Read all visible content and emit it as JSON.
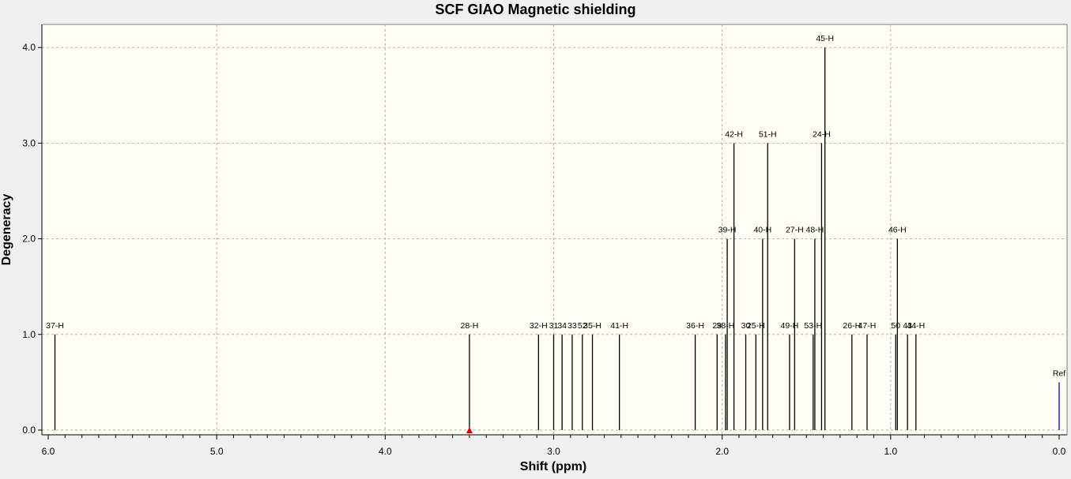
{
  "colors": {
    "plot_background": "#fffff5",
    "grid": "#b0b0b0",
    "peak": "#000000",
    "ref_line": "#0000c0",
    "marker": "#e00000"
  },
  "chart_data": {
    "type": "bar",
    "title": "SCF GIAO Magnetic shielding",
    "xlabel": "Shift (ppm)",
    "ylabel": "Degeneracy",
    "xlim": [
      6.0,
      0.0
    ],
    "ylim": [
      0,
      4.2
    ],
    "x_reversed": true,
    "grid": true,
    "x_ticks": [
      "6.0",
      "5.0",
      "4.0",
      "3.0",
      "2.0",
      "1.0",
      "0.0"
    ],
    "y_ticks": [
      "0.0",
      "1.0",
      "2.0",
      "3.0",
      "4.0"
    ],
    "marker_shift": 3.5,
    "peaks": [
      {
        "label": "37-H",
        "shift": 5.96,
        "degeneracy": 1
      },
      {
        "label": "28-H",
        "shift": 3.5,
        "degeneracy": 1
      },
      {
        "label": "32-H",
        "shift": 3.09,
        "degeneracy": 1
      },
      {
        "label": "31",
        "shift": 3.0,
        "degeneracy": 1
      },
      {
        "label": "34",
        "shift": 2.95,
        "degeneracy": 1
      },
      {
        "label": "33",
        "shift": 2.89,
        "degeneracy": 1
      },
      {
        "label": "52",
        "shift": 2.83,
        "degeneracy": 1
      },
      {
        "label": "35-H",
        "shift": 2.77,
        "degeneracy": 1
      },
      {
        "label": "41-H",
        "shift": 2.61,
        "degeneracy": 1
      },
      {
        "label": "36-H",
        "shift": 2.16,
        "degeneracy": 1
      },
      {
        "label": "29",
        "shift": 2.03,
        "degeneracy": 1
      },
      {
        "label": "38-H",
        "shift": 1.98,
        "degeneracy": 1
      },
      {
        "label": "39-H",
        "shift": 1.97,
        "degeneracy": 2
      },
      {
        "label": "42-H",
        "shift": 1.93,
        "degeneracy": 3
      },
      {
        "label": "30",
        "shift": 1.86,
        "degeneracy": 1
      },
      {
        "label": "25-H",
        "shift": 1.8,
        "degeneracy": 1
      },
      {
        "label": "40-H",
        "shift": 1.76,
        "degeneracy": 2
      },
      {
        "label": "51-H",
        "shift": 1.73,
        "degeneracy": 3
      },
      {
        "label": "49-H",
        "shift": 1.6,
        "degeneracy": 1
      },
      {
        "label": "27-H",
        "shift": 1.57,
        "degeneracy": 2
      },
      {
        "label": "53-H",
        "shift": 1.46,
        "degeneracy": 1
      },
      {
        "label": "48-H",
        "shift": 1.45,
        "degeneracy": 2
      },
      {
        "label": "24-H",
        "shift": 1.41,
        "degeneracy": 3
      },
      {
        "label": "45-H",
        "shift": 1.39,
        "degeneracy": 4
      },
      {
        "label": "26-H",
        "shift": 1.23,
        "degeneracy": 1
      },
      {
        "label": "47-H",
        "shift": 1.14,
        "degeneracy": 1
      },
      {
        "label": "50",
        "shift": 0.97,
        "degeneracy": 1
      },
      {
        "label": "46-H",
        "shift": 0.96,
        "degeneracy": 2
      },
      {
        "label": "43",
        "shift": 0.9,
        "degeneracy": 1
      },
      {
        "label": "44-H",
        "shift": 0.85,
        "degeneracy": 1
      },
      {
        "label": "Ref",
        "shift": 0.0,
        "degeneracy": 0.5
      }
    ]
  }
}
